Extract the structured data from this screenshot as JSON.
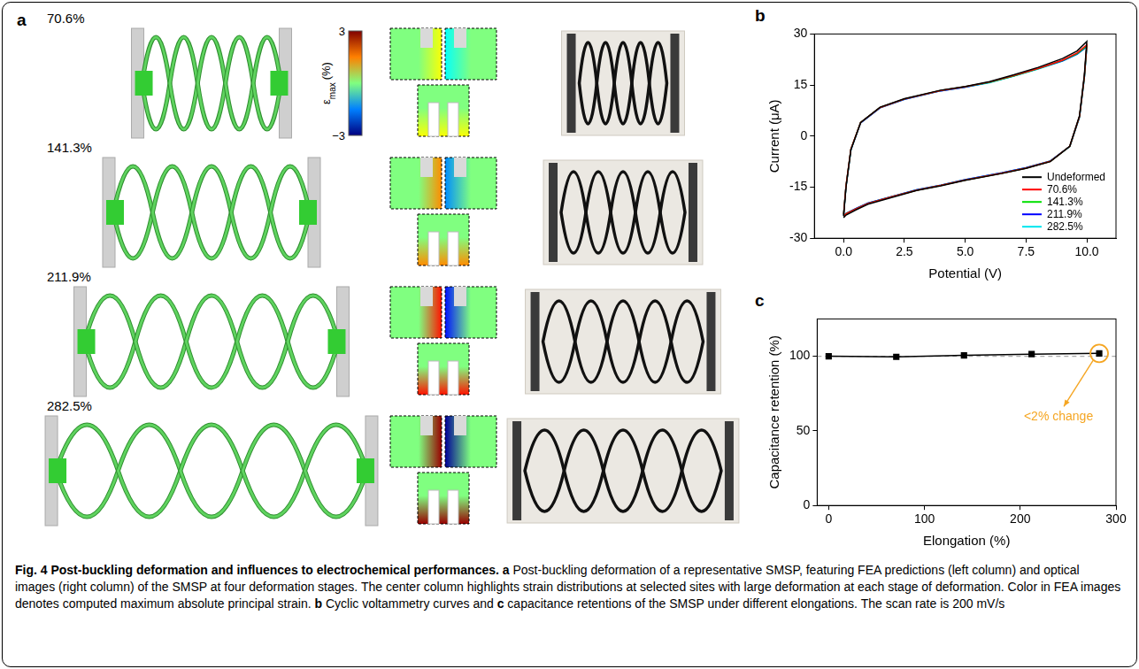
{
  "panel_labels": [
    "a",
    "b",
    "c"
  ],
  "panel_a": {
    "stages": [
      {
        "value": 70.6,
        "label": "70.6%"
      },
      {
        "value": 141.3,
        "label": "141.3%"
      },
      {
        "value": 211.9,
        "label": "211.9%"
      },
      {
        "value": 282.5,
        "label": "282.5%"
      }
    ],
    "colorbar": {
      "range": [
        -3,
        3
      ],
      "ticks": [
        3,
        {
          "value": -3,
          "label": "−3"
        }
      ],
      "title": {
        "symbol": "ε",
        "subscript": "max",
        "unit": "(%)"
      }
    }
  },
  "chart_data": [
    {
      "type": "line",
      "xlabel": "Potential (V)",
      "ylabel": "Current (μA)",
      "xlim": [
        -1.2,
        11.2
      ],
      "xticks": [
        {
          "value": 0,
          "label": "0.0"
        },
        2.5,
        {
          "value": 5,
          "label": "5.0"
        },
        7.5,
        {
          "value": 10,
          "label": "10.0"
        }
      ],
      "ylim": [
        -30,
        30
      ],
      "yticks": [
        -30,
        -15,
        0,
        15,
        30
      ],
      "grid": false,
      "legend": "lower right",
      "x": [
        0,
        0.1,
        0.3,
        0.7,
        1.5,
        2.5,
        4,
        5,
        6,
        7,
        8,
        9,
        9.6,
        10,
        9.9,
        9.7,
        9.3,
        8.5,
        7.5,
        6.5,
        5,
        4,
        3,
        2,
        1,
        0.5,
        0.1,
        0
      ],
      "series": [
        {
          "name": "Undeformed",
          "color": "#000000",
          "values": [
            -23.5,
            -15,
            -4,
            4,
            8.5,
            11,
            13.5,
            14.6,
            16,
            18,
            20.2,
            22.8,
            25,
            27.8,
            18,
            6,
            -3,
            -7.5,
            -9.5,
            -11,
            -13,
            -14.6,
            -16,
            -18,
            -20,
            -21.7,
            -23.2,
            -24
          ]
        },
        {
          "name": "70.6%",
          "color": "#ff0000",
          "values": [
            -23,
            -14.5,
            -3.8,
            4,
            8.4,
            10.9,
            13.4,
            14.5,
            15.9,
            17.8,
            19.9,
            22.3,
            24.4,
            26.8,
            17.5,
            5.8,
            -3,
            -7.4,
            -9.4,
            -10.9,
            -12.9,
            -14.5,
            -15.9,
            -17.8,
            -19.8,
            -21.4,
            -22.8,
            -23.5
          ]
        },
        {
          "name": "141.3%",
          "color": "#00e000",
          "values": [
            -23,
            -14.6,
            -3.9,
            4,
            8.4,
            10.9,
            13.4,
            14.5,
            15.8,
            17.7,
            19.8,
            22.2,
            24.2,
            26.5,
            17.3,
            5.7,
            -3,
            -7.4,
            -9.4,
            -10.9,
            -12.9,
            -14.5,
            -15.9,
            -17.8,
            -19.8,
            -21.4,
            -22.8,
            -23.4
          ]
        },
        {
          "name": "211.9%",
          "color": "#0000ff",
          "values": [
            -23.1,
            -14.7,
            -4,
            3.9,
            8.3,
            10.8,
            13.3,
            14.4,
            15.8,
            17.7,
            19.8,
            22.1,
            24.1,
            26.3,
            17.2,
            5.6,
            -3,
            -7.3,
            -9.3,
            -10.8,
            -12.8,
            -14.4,
            -15.8,
            -17.7,
            -19.7,
            -21.3,
            -22.7,
            -23.4
          ]
        },
        {
          "name": "282.5%",
          "color": "#00e5ee",
          "values": [
            -23.2,
            -14.8,
            -4.1,
            3.9,
            8.3,
            10.8,
            13.3,
            14.4,
            15.7,
            17.6,
            19.7,
            22,
            24,
            26.2,
            17.1,
            5.5,
            -3.1,
            -7.3,
            -9.3,
            -10.8,
            -12.8,
            -14.4,
            -15.8,
            -17.7,
            -19.7,
            -21.3,
            -22.8,
            -23.5
          ]
        }
      ]
    },
    {
      "type": "line",
      "marker": "square",
      "xlabel": "Elongation (%)",
      "ylabel": "Capacitance retention (%)",
      "xlim": [
        -12,
        300
      ],
      "xticks": [
        0,
        100,
        200,
        300
      ],
      "ylim": [
        0,
        125
      ],
      "yticks": [
        0,
        50,
        100
      ],
      "grid": false,
      "x": [
        0,
        70.6,
        141.3,
        211.9,
        282.5
      ],
      "series": [
        {
          "color": "#000000",
          "values": [
            100,
            99.6,
            100.6,
            101.4,
            101.9
          ]
        }
      ],
      "hline": {
        "value": 100,
        "line_style": "dashed",
        "color": "#aaaaaa"
      },
      "annotation": {
        "text": "<2% change",
        "x": 282.5,
        "y": 101.9,
        "color": "#f5a623"
      }
    }
  ],
  "caption": [
    {
      "text": "Fig. 4 Post-buckling deformation and influences to electrochemical performances.",
      "bold": true
    },
    {
      "text": " a",
      "bold": true
    },
    {
      "text": " Post-buckling deformation of a representative SMSP, featuring FEA predictions (left column) and optical images (right column) of the SMSP at four deformation stages. The center column highlights strain distributions at selected sites with large deformation at each stage of deformation. Color in FEA images denotes computed maximum absolute principal strain.",
      "bold": false
    },
    {
      "text": " b",
      "bold": true
    },
    {
      "text": " Cyclic voltammetry curves and",
      "bold": false
    },
    {
      "text": " c",
      "bold": true
    },
    {
      "text": " capacitance retentions of the SMSP under different elongations. The scan rate is 200 mV/s",
      "bold": false
    }
  ]
}
